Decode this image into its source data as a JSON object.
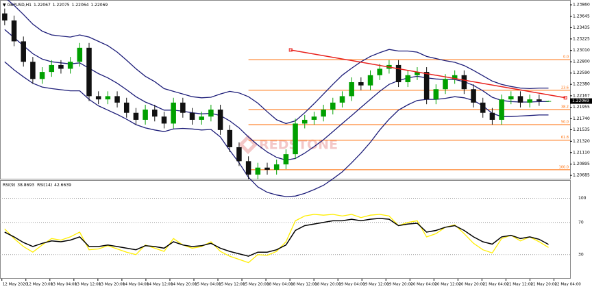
{
  "watermark": "REDSTONE",
  "chart_data": [
    {
      "type": "candlestick",
      "title": "GBPUSD,H1",
      "open": [
        1.237,
        1.2357,
        1.2318,
        1.228,
        1.2248,
        1.2261,
        1.2274,
        1.2267,
        1.228,
        1.2306,
        1.2216,
        1.221,
        1.2216,
        1.2204,
        1.2185,
        1.2172,
        1.2191,
        1.2178,
        1.2165,
        1.2204,
        1.2185,
        1.2172,
        1.2178,
        1.2191,
        1.2153,
        1.2121,
        1.2095,
        1.207,
        1.2083,
        1.2079,
        1.2089,
        1.2108,
        1.2165,
        1.2172,
        1.2178,
        1.2191,
        1.2204,
        1.2216,
        1.2242,
        1.2236,
        1.2255,
        1.2267,
        1.2274,
        1.2242,
        1.2255,
        1.2261,
        1.221,
        1.2229,
        1.2248,
        1.2255,
        1.2229,
        1.2204,
        1.2185,
        1.2172,
        1.221,
        1.2216,
        1.2204,
        1.221,
        1.22067
      ],
      "high": [
        1.2379,
        1.2366,
        1.2327,
        1.2289,
        1.227,
        1.2283,
        1.2283,
        1.2289,
        1.2315,
        1.2315,
        1.2225,
        1.2225,
        1.2225,
        1.2213,
        1.2194,
        1.22,
        1.22,
        1.2187,
        1.2213,
        1.2213,
        1.2194,
        1.2187,
        1.22,
        1.22,
        1.2162,
        1.213,
        1.2104,
        1.2092,
        1.2092,
        1.2098,
        1.2117,
        1.2174,
        1.2181,
        1.2187,
        1.22,
        1.2213,
        1.2225,
        1.2251,
        1.2251,
        1.2264,
        1.2276,
        1.2283,
        1.2283,
        1.2264,
        1.227,
        1.227,
        1.2238,
        1.2257,
        1.2264,
        1.2264,
        1.2238,
        1.2213,
        1.2194,
        1.2219,
        1.2225,
        1.2225,
        1.2219,
        1.2219,
        1.22075
      ],
      "low": [
        1.2348,
        1.2309,
        1.2271,
        1.2239,
        1.2239,
        1.2252,
        1.2258,
        1.2258,
        1.2271,
        1.2207,
        1.2201,
        1.2201,
        1.2195,
        1.2176,
        1.2163,
        1.2163,
        1.2169,
        1.2156,
        1.2156,
        1.2176,
        1.2163,
        1.2163,
        1.2169,
        1.2144,
        1.2112,
        1.2086,
        1.2061,
        1.2061,
        1.207,
        1.207,
        1.208,
        1.2099,
        1.2156,
        1.2163,
        1.2169,
        1.2182,
        1.2195,
        1.2207,
        1.2227,
        1.2227,
        1.2246,
        1.2258,
        1.2233,
        1.2233,
        1.2246,
        1.2201,
        1.2201,
        1.222,
        1.2239,
        1.222,
        1.2195,
        1.2176,
        1.2163,
        1.2163,
        1.2201,
        1.2195,
        1.2195,
        1.2198,
        1.22064
      ],
      "close": [
        1.2357,
        1.2318,
        1.228,
        1.2248,
        1.2261,
        1.2274,
        1.2267,
        1.228,
        1.2306,
        1.2216,
        1.221,
        1.2216,
        1.2204,
        1.2185,
        1.2172,
        1.2191,
        1.2178,
        1.2165,
        1.2204,
        1.2185,
        1.2172,
        1.2178,
        1.2191,
        1.2153,
        1.2121,
        1.2095,
        1.207,
        1.2083,
        1.2079,
        1.2089,
        1.2108,
        1.2165,
        1.2172,
        1.2178,
        1.2191,
        1.2204,
        1.2216,
        1.2242,
        1.2236,
        1.2255,
        1.2267,
        1.2274,
        1.2242,
        1.2255,
        1.2261,
        1.221,
        1.2229,
        1.2248,
        1.2255,
        1.2229,
        1.2204,
        1.2185,
        1.2172,
        1.221,
        1.2216,
        1.2204,
        1.221,
        1.2207,
        1.22069
      ],
      "up_color": "#00a000",
      "down_color": "#111111",
      "bollinger": {
        "color": "#1c1c78",
        "upper": [
          1.24,
          1.2385,
          1.2368,
          1.235,
          1.2337,
          1.233,
          1.2328,
          1.2326,
          1.233,
          1.2326,
          1.2318,
          1.231,
          1.2298,
          1.2283,
          1.2267,
          1.2253,
          1.2243,
          1.223,
          1.2225,
          1.222,
          1.2215,
          1.2213,
          1.2214,
          1.222,
          1.2225,
          1.2222,
          1.2215,
          1.2203,
          1.2187,
          1.2172,
          1.2165,
          1.217,
          1.2185,
          1.2202,
          1.222,
          1.2238,
          1.2255,
          1.2268,
          1.228,
          1.229,
          1.2297,
          1.2303,
          1.23,
          1.23,
          1.2298,
          1.229,
          1.2286,
          1.2282,
          1.2279,
          1.2273,
          1.2264,
          1.2254,
          1.2244,
          1.2238,
          1.2234,
          1.2231,
          1.223,
          1.2231,
          1.2231
        ],
        "middle": [
          1.234,
          1.2325,
          1.231,
          1.2295,
          1.2285,
          1.228,
          1.2278,
          1.2276,
          1.2278,
          1.2268,
          1.2258,
          1.225,
          1.224,
          1.2228,
          1.2215,
          1.2205,
          1.2198,
          1.219,
          1.219,
          1.2188,
          1.2185,
          1.2183,
          1.2184,
          1.218,
          1.217,
          1.2157,
          1.214,
          1.2125,
          1.2112,
          1.2102,
          1.2097,
          1.21,
          1.211,
          1.2122,
          1.2135,
          1.215,
          1.2165,
          1.218,
          1.2195,
          1.221,
          1.2225,
          1.2238,
          1.2245,
          1.225,
          1.2253,
          1.225,
          1.2248,
          1.2247,
          1.2247,
          1.2243,
          1.2236,
          1.2226,
          1.2214,
          1.2208,
          1.2206,
          1.2205,
          1.2205,
          1.2206,
          1.2206
        ],
        "lower": [
          1.228,
          1.2265,
          1.2252,
          1.224,
          1.2233,
          1.223,
          1.2228,
          1.2226,
          1.2226,
          1.221,
          1.2198,
          1.219,
          1.2182,
          1.2173,
          1.2163,
          1.2157,
          1.2153,
          1.215,
          1.2155,
          1.2156,
          1.2155,
          1.2153,
          1.2154,
          1.214,
          1.2115,
          1.2092,
          1.2065,
          1.2047,
          1.2037,
          1.2032,
          1.2029,
          1.203,
          1.2035,
          1.2042,
          1.205,
          1.2062,
          1.2075,
          1.2092,
          1.211,
          1.213,
          1.2153,
          1.2173,
          1.219,
          1.22,
          1.2208,
          1.221,
          1.221,
          1.2212,
          1.2215,
          1.2213,
          1.2208,
          1.2198,
          1.2184,
          1.2178,
          1.2178,
          1.2179,
          1.218,
          1.2181,
          1.2181
        ]
      },
      "fibonacci": {
        "color": "#ff6a00",
        "start": 26,
        "levels": [
          {
            "value": 1.2284,
            "label": "0.0"
          },
          {
            "value": 1.2227,
            "label": "23.6"
          },
          {
            "value": 1.2191,
            "label": "38.2"
          },
          {
            "value": 1.2163,
            "label": "50.0"
          },
          {
            "value": 1.2134,
            "label": "61.8"
          },
          {
            "value": 1.2079,
            "label": "100.0"
          }
        ]
      },
      "trendline": {
        "color": "#e8201c",
        "x": [
          30.5,
          59.8
        ],
        "y": [
          1.2302,
          1.2213
        ]
      },
      "xlim": [
        -0.5,
        60.3
      ],
      "ylim": [
        1.2061,
        1.2395
      ],
      "yticks": [
        {
          "value": 1.2386,
          "label": "1.23860"
        },
        {
          "value": 1.23645,
          "label": "1.23645"
        },
        {
          "value": 1.23435,
          "label": "1.23435"
        },
        {
          "value": 1.23225,
          "label": "1.23225"
        },
        {
          "value": 1.2301,
          "label": "1.23010"
        },
        {
          "value": 1.228,
          "label": "1.22800"
        },
        {
          "value": 1.2259,
          "label": "1.22590"
        },
        {
          "value": 1.2238,
          "label": "1.22380"
        },
        {
          "value": 1.22167,
          "label": "1.22167"
        },
        {
          "value": 1.21955,
          "label": "1.21955"
        },
        {
          "value": 1.2174,
          "label": "1.21740"
        },
        {
          "value": 1.21535,
          "label": "1.21535"
        },
        {
          "value": 1.2132,
          "label": "1.21320"
        },
        {
          "value": 1.2111,
          "label": "1.21110"
        },
        {
          "value": 1.20895,
          "label": "1.20895"
        },
        {
          "value": 1.20685,
          "label": "1.20685"
        }
      ]
    },
    {
      "type": "line",
      "series": [
        {
          "name": "RSI(9)",
          "color": "#ffee00",
          "values": [
            62,
            50,
            40,
            33,
            42,
            50,
            48,
            52,
            58,
            36,
            37,
            41,
            37,
            33,
            30,
            42,
            38,
            34,
            50,
            42,
            38,
            40,
            46,
            34,
            28,
            24,
            20,
            30,
            29,
            34,
            46,
            72,
            78,
            80,
            79,
            80,
            78,
            80,
            76,
            79,
            80,
            78,
            66,
            70,
            72,
            52,
            56,
            64,
            67,
            56,
            44,
            36,
            32,
            50,
            54,
            47,
            52,
            46,
            38.8693
          ]
        },
        {
          "name": "RSI(14)",
          "color": "#000000",
          "values": [
            58,
            52,
            45,
            40,
            44,
            47,
            46,
            48,
            52,
            40,
            40,
            42,
            40,
            38,
            36,
            41,
            40,
            38,
            46,
            42,
            40,
            41,
            44,
            38,
            34,
            31,
            28,
            33,
            33,
            36,
            42,
            60,
            66,
            68,
            70,
            72,
            72,
            74,
            72,
            74,
            75,
            74,
            66,
            68,
            69,
            58,
            60,
            64,
            66,
            60,
            52,
            46,
            43,
            52,
            54,
            50,
            52,
            49,
            42.6639
          ]
        }
      ],
      "xlim": [
        -0.5,
        60.3
      ],
      "ylim": [
        0,
        122.6
      ],
      "yticks": [
        30,
        70,
        100
      ],
      "xticks": [
        {
          "value": -0.3,
          "label": "12 May 2020"
        },
        {
          "value": 2.26,
          "label": "12 May 20:00"
        },
        {
          "value": 4.82,
          "label": "13 May 04:00"
        },
        {
          "value": 7.38,
          "label": "13 May 12:00"
        },
        {
          "value": 9.94,
          "label": "13 May 20:00"
        },
        {
          "value": 12.5,
          "label": "14 May 04:00"
        },
        {
          "value": 15.06,
          "label": "14 May 12:00"
        },
        {
          "value": 17.62,
          "label": "14 May 20:00"
        },
        {
          "value": 20.18,
          "label": "15 May 04:00"
        },
        {
          "value": 22.74,
          "label": "15 May 12:00"
        },
        {
          "value": 25.3,
          "label": "15 May 20:00"
        },
        {
          "value": 27.86,
          "label": "18 May 04:00"
        },
        {
          "value": 30.42,
          "label": "18 May 12:00"
        },
        {
          "value": 32.98,
          "label": "18 May 20:00"
        },
        {
          "value": 35.54,
          "label": "19 May 04:00"
        },
        {
          "value": 38.1,
          "label": "19 May 12:00"
        },
        {
          "value": 40.66,
          "label": "19 May 20:00"
        },
        {
          "value": 43.22,
          "label": "20 May 04:00"
        },
        {
          "value": 45.78,
          "label": "20 May 12:00"
        },
        {
          "value": 48.34,
          "label": "20 May 20:00"
        },
        {
          "value": 50.9,
          "label": "21 May 04:00"
        },
        {
          "value": 53.46,
          "label": "21 May 12:00"
        },
        {
          "value": 56.02,
          "label": "21 May 20:00"
        },
        {
          "value": 58.58,
          "label": "22 May 04:00"
        }
      ]
    }
  ]
}
